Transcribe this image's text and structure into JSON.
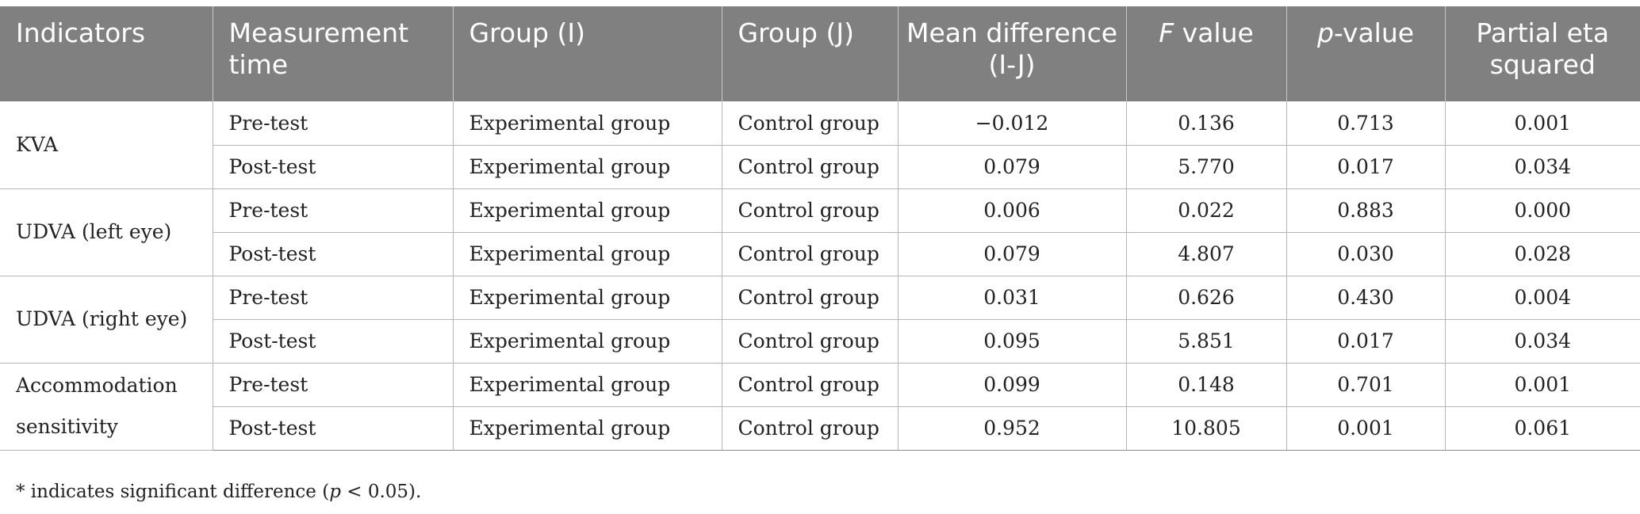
{
  "headers": [
    {
      "parts": [
        {
          "t": "Indicators"
        }
      ]
    },
    {
      "parts": [
        {
          "t": "Measurement time"
        }
      ]
    },
    {
      "parts": [
        {
          "t": "Group (I)"
        }
      ]
    },
    {
      "parts": [
        {
          "t": "Group (J)"
        }
      ]
    },
    {
      "parts": [
        {
          "t": "Mean difference (I-J)"
        }
      ]
    },
    {
      "parts": [
        {
          "t": "F",
          "i": true
        },
        {
          "t": " value"
        }
      ]
    },
    {
      "parts": [
        {
          "t": "p",
          "i": true
        },
        {
          "t": "-value"
        }
      ]
    },
    {
      "parts": [
        {
          "t": "Partial eta squared"
        }
      ]
    }
  ],
  "indicators": [
    {
      "name": "KVA",
      "rows": [
        {
          "time": "Pre-test",
          "group_i": "Experimental group",
          "group_j": "Control group",
          "mean_diff": "−0.012",
          "f_value": "0.136",
          "p_value": "0.713",
          "eta": "0.001"
        },
        {
          "time": "Post-test",
          "group_i": "Experimental group",
          "group_j": "Control group",
          "mean_diff": "0.079",
          "f_value": "5.770",
          "p_value": "0.017",
          "eta": "0.034"
        }
      ]
    },
    {
      "name": "UDVA (left eye)",
      "rows": [
        {
          "time": "Pre-test",
          "group_i": "Experimental group",
          "group_j": "Control group",
          "mean_diff": "0.006",
          "f_value": "0.022",
          "p_value": "0.883",
          "eta": "0.000"
        },
        {
          "time": "Post-test",
          "group_i": "Experimental group",
          "group_j": "Control group",
          "mean_diff": "0.079",
          "f_value": "4.807",
          "p_value": "0.030",
          "eta": "0.028"
        }
      ]
    },
    {
      "name": "UDVA (right eye)",
      "rows": [
        {
          "time": "Pre-test",
          "group_i": "Experimental group",
          "group_j": "Control group",
          "mean_diff": "0.031",
          "f_value": "0.626",
          "p_value": "0.430",
          "eta": "0.004"
        },
        {
          "time": "Post-test",
          "group_i": "Experimental group",
          "group_j": "Control group",
          "mean_diff": "0.095",
          "f_value": "5.851",
          "p_value": "0.017",
          "eta": "0.034"
        }
      ]
    },
    {
      "name": "Accommodation sensitivity",
      "rows": [
        {
          "time": "Pre-test",
          "group_i": "Experimental group",
          "group_j": "Control group",
          "mean_diff": "0.099",
          "f_value": "0.148",
          "p_value": "0.701",
          "eta": "0.001"
        },
        {
          "time": "Post-test",
          "group_i": "Experimental group",
          "group_j": "Control group",
          "mean_diff": "0.952",
          "f_value": "10.805",
          "p_value": "0.001",
          "eta": "0.061"
        }
      ]
    }
  ],
  "footnote": {
    "parts": [
      {
        "t": "* indicates significant difference ("
      },
      {
        "t": "p",
        "i": true
      },
      {
        "t": " < 0.05)."
      }
    ]
  }
}
